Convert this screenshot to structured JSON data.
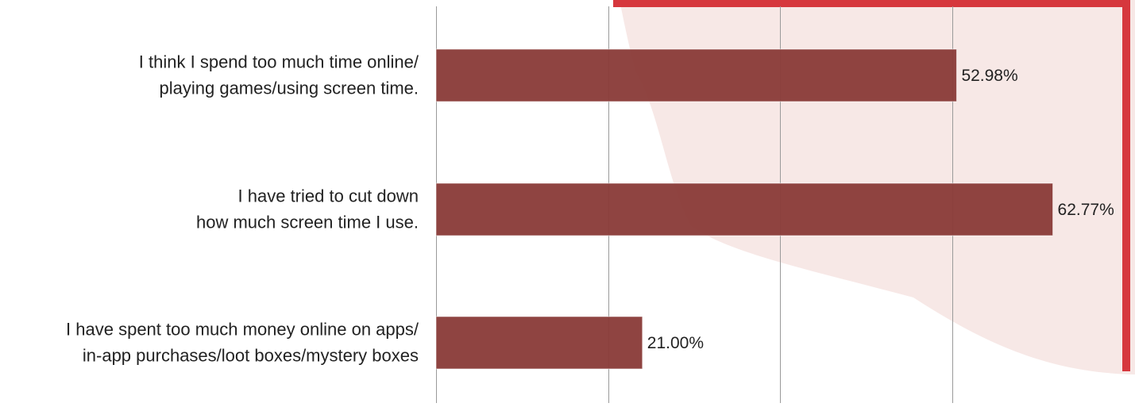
{
  "chart_data": {
    "type": "bar",
    "orientation": "horizontal",
    "categories": [
      [
        "I think I spend too much time online/",
        "playing games/using screen time."
      ],
      [
        "I have tried to cut down",
        "how much screen time I use."
      ],
      [
        "I have spent too much money online on apps/",
        "in-app purchases/loot boxes/mystery boxes"
      ]
    ],
    "values": [
      52.98,
      62.77,
      21.0
    ],
    "value_labels": [
      "52.98%",
      "62.77%",
      "21.00%"
    ],
    "xlim": [
      0,
      70
    ],
    "grid_step": 17.5,
    "grid": true,
    "legend": "none",
    "title": "",
    "xlabel": "",
    "ylabel": ""
  },
  "colors": {
    "bar": "#8a3c39",
    "accent_red": "#d6373d",
    "background_shape": "#f7e8e6",
    "grid": "#9a9a9a",
    "text": "#222222"
  }
}
